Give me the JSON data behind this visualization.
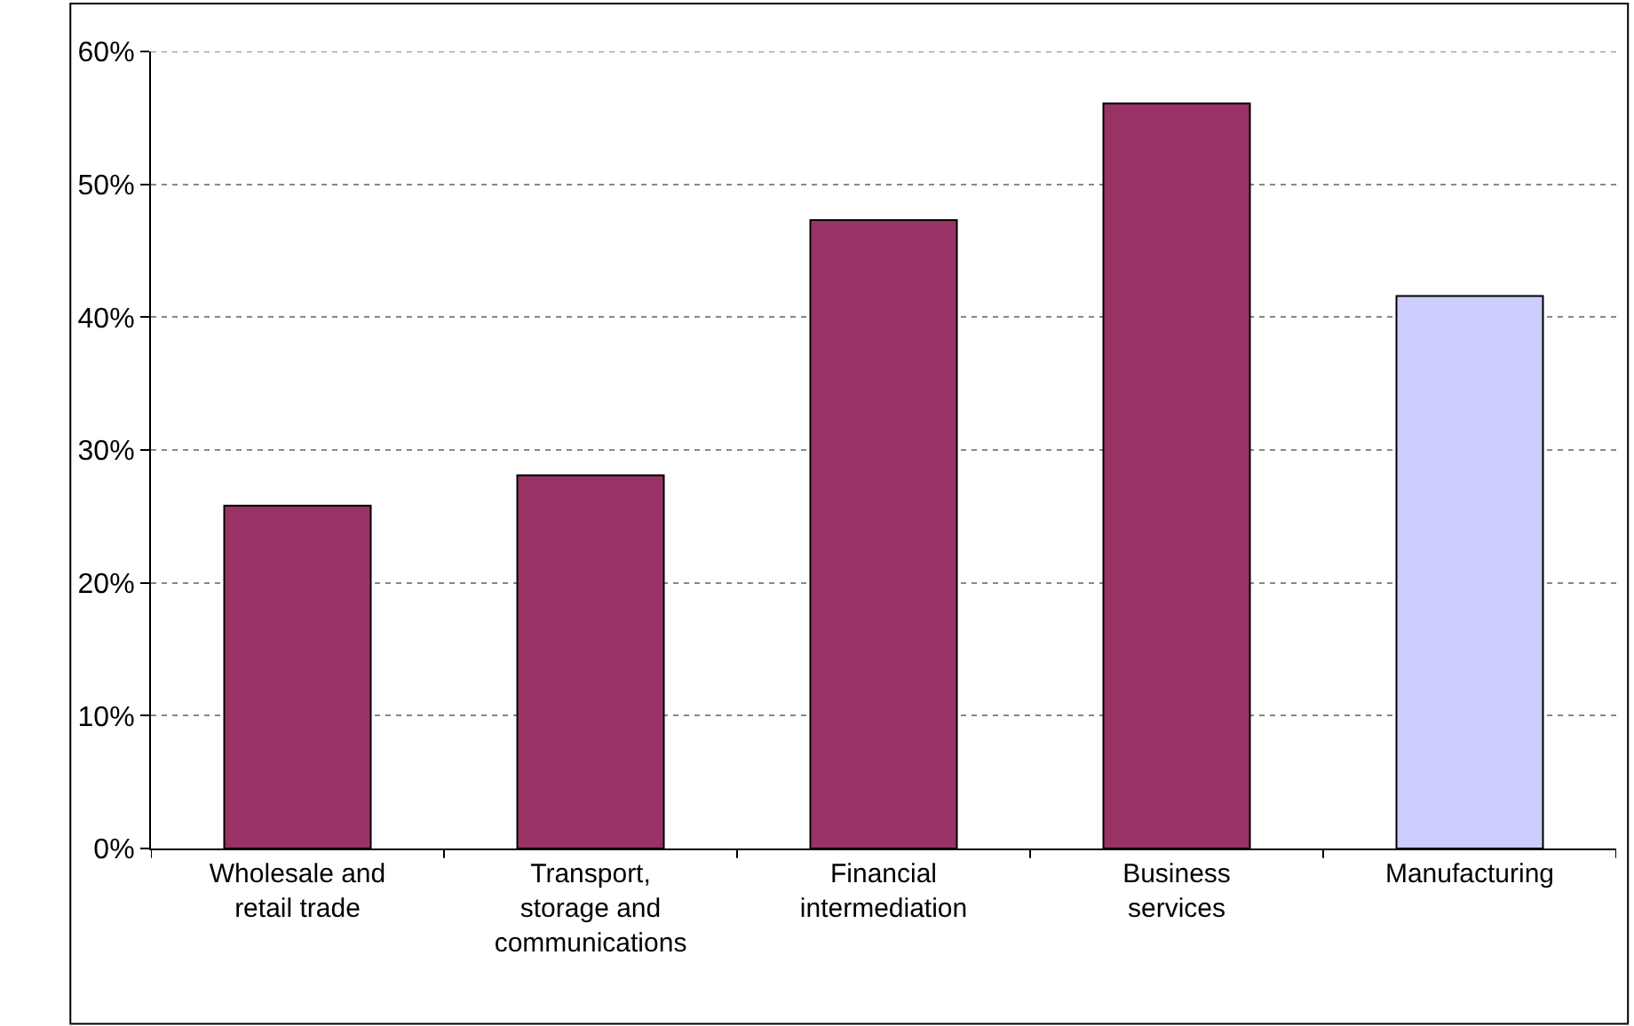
{
  "chart_data": {
    "type": "bar",
    "categories": [
      "Wholesale and retail trade",
      "Transport, storage and communications",
      "Financial intermediation",
      "Business services",
      "Manufacturing"
    ],
    "values": [
      25.8,
      28.1,
      47.3,
      56.1,
      41.6
    ],
    "colors": [
      "#993366",
      "#993366",
      "#993366",
      "#993366",
      "#ccccff"
    ],
    "ylim": [
      0,
      60
    ],
    "yticks": [
      {
        "value": 0,
        "label": "0%"
      },
      {
        "value": 10,
        "label": "10%"
      },
      {
        "value": 20,
        "label": "20%"
      },
      {
        "value": 30,
        "label": "30%"
      },
      {
        "value": 40,
        "label": "40%"
      },
      {
        "value": 50,
        "label": "50%"
      },
      {
        "value": 60,
        "label": "60%"
      }
    ],
    "grid": "y"
  }
}
